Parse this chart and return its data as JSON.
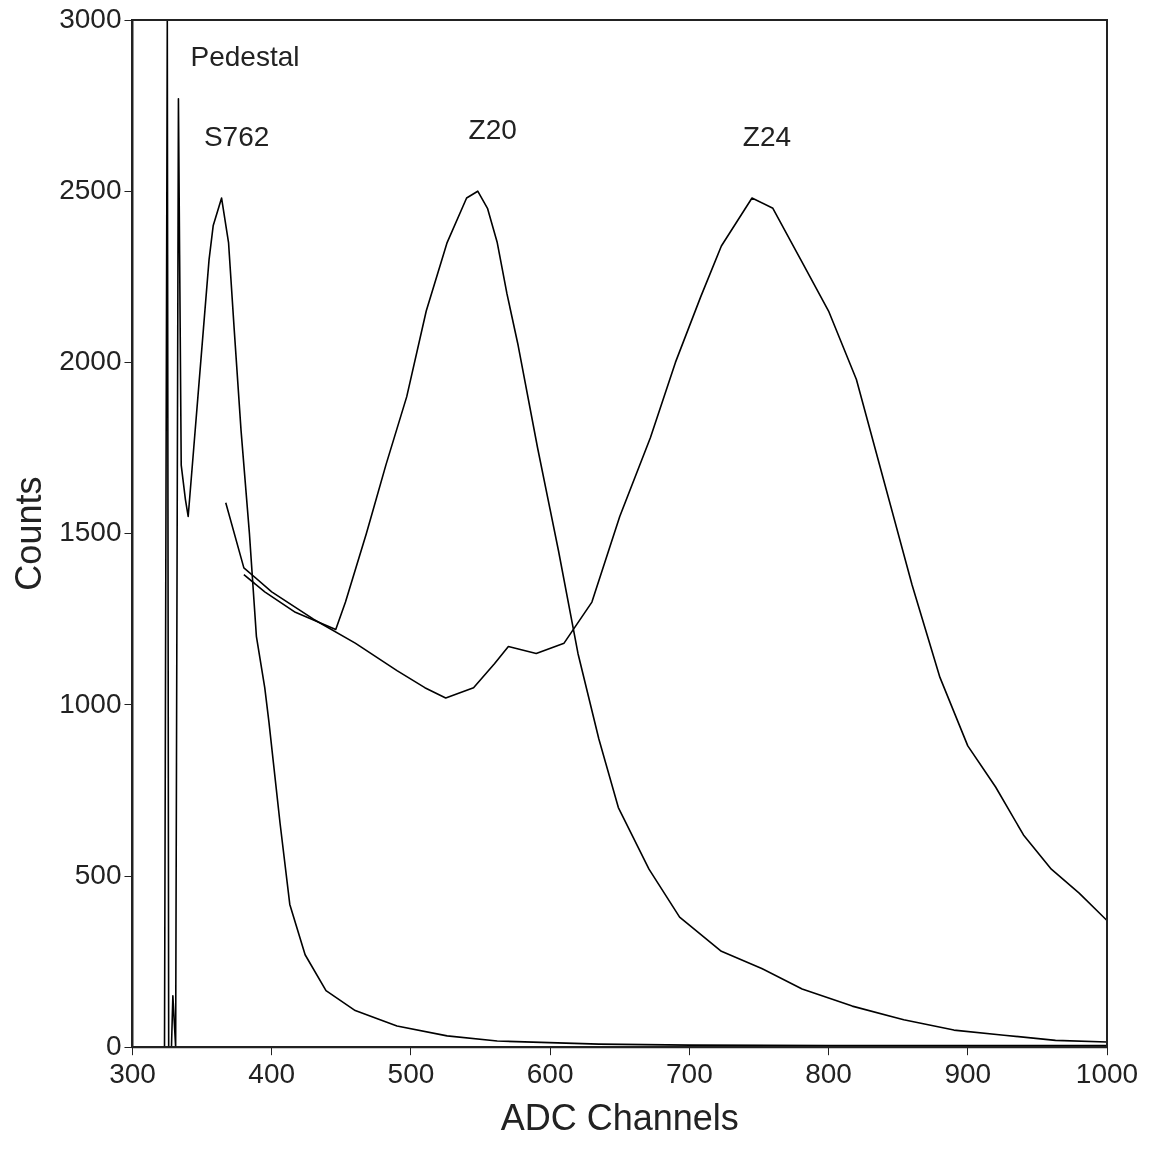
{
  "chart_data": {
    "type": "line",
    "xlabel": "ADC Channels",
    "ylabel": "Counts",
    "xlim": [
      300,
      1000
    ],
    "ylim": [
      0,
      3000
    ],
    "xticks": [
      300,
      400,
      500,
      600,
      700,
      800,
      900,
      1000
    ],
    "yticks": [
      0,
      500,
      1000,
      1500,
      2000,
      2500,
      3000
    ],
    "marker": "none",
    "line_style": "solid",
    "series": [
      {
        "name": "S762",
        "color": "#000000",
        "x": [
          323,
          325,
          326,
          328,
          329,
          331,
          333,
          335,
          338,
          340,
          344,
          347,
          351,
          355,
          358,
          364,
          369,
          373,
          378,
          384,
          389,
          395,
          398,
          406,
          413,
          424,
          439,
          460,
          490,
          526,
          562,
          635,
          700,
          800,
          900,
          1000
        ],
        "values": [
          0,
          3000,
          0,
          0,
          150,
          0,
          2770,
          1700,
          1600,
          1550,
          1750,
          1900,
          2100,
          2300,
          2400,
          2480,
          2350,
          2100,
          1800,
          1500,
          1200,
          1050,
          950,
          654,
          417,
          270,
          165,
          107,
          62,
          33,
          18,
          9,
          6,
          5,
          5,
          5
        ]
      },
      {
        "name": "Z20",
        "color": "#000000",
        "x": [
          380,
          395,
          417,
          446,
          453,
          468,
          482,
          497,
          511,
          526,
          540,
          548,
          555,
          562,
          569,
          577,
          591,
          606,
          620,
          635,
          649,
          671,
          693,
          723,
          752,
          781,
          817,
          854,
          890,
          926,
          963,
          1000
        ],
        "values": [
          1380,
          1330,
          1270,
          1220,
          1300,
          1500,
          1700,
          1900,
          2150,
          2350,
          2480,
          2500,
          2450,
          2350,
          2200,
          2050,
          1750,
          1450,
          1150,
          900,
          700,
          520,
          380,
          280,
          230,
          170,
          120,
          80,
          50,
          35,
          20,
          15
        ]
      },
      {
        "name": "Z24",
        "color": "#000000",
        "x": [
          367,
          380,
          400,
          430,
          460,
          490,
          510,
          525,
          545,
          560,
          570,
          590,
          610,
          630,
          650,
          672,
          690,
          708,
          723,
          745,
          760,
          780,
          800,
          820,
          840,
          860,
          880,
          900,
          920,
          940,
          960,
          980,
          1000
        ],
        "values": [
          1590,
          1400,
          1330,
          1250,
          1180,
          1100,
          1050,
          1020,
          1050,
          1120,
          1170,
          1150,
          1180,
          1300,
          1550,
          1780,
          2000,
          2190,
          2340,
          2480,
          2450,
          2300,
          2150,
          1950,
          1650,
          1350,
          1080,
          880,
          760,
          620,
          520,
          450,
          370
        ]
      }
    ],
    "annotations": [
      "Pedestal"
    ]
  }
}
